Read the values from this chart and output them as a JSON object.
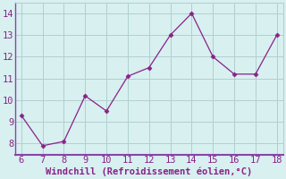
{
  "x": [
    6,
    7,
    8,
    9,
    10,
    11,
    12,
    13,
    14,
    15,
    16,
    17,
    18
  ],
  "y": [
    9.3,
    7.9,
    8.1,
    10.2,
    9.5,
    11.1,
    11.5,
    13.0,
    14.0,
    12.0,
    11.2,
    11.2,
    13.0
  ],
  "line_color": "#882288",
  "marker": "D",
  "marker_size": 2.5,
  "line_width": 0.9,
  "background_color": "#d8f0f0",
  "grid_color": "#b0d0d0",
  "spine_color": "#8844aa",
  "xlabel": "Windchill (Refroidissement éolien,°C)",
  "xlabel_color": "#882288",
  "xlabel_fontsize": 7.5,
  "xlim": [
    5.7,
    18.3
  ],
  "ylim": [
    7.5,
    14.5
  ],
  "xticks": [
    6,
    7,
    8,
    9,
    10,
    11,
    12,
    13,
    14,
    15,
    16,
    17,
    18
  ],
  "yticks": [
    8,
    9,
    10,
    11,
    12,
    13,
    14
  ],
  "tick_color": "#882288",
  "tick_fontsize": 7.5
}
